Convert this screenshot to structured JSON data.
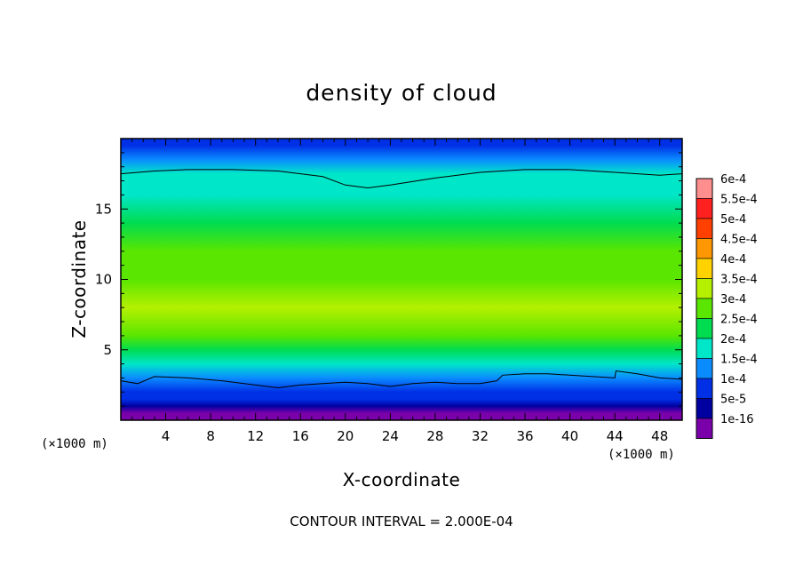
{
  "chart_data": {
    "type": "heatmap",
    "title": "density of cloud",
    "xlabel": "X-coordinate",
    "ylabel": "Z-coordinate",
    "x_unit_label": "(×1000 m)",
    "x_ticks": [
      4,
      8,
      12,
      16,
      20,
      24,
      28,
      32,
      36,
      40,
      44,
      48
    ],
    "y_ticks": [
      5,
      10,
      15
    ],
    "xlim": [
      0,
      50
    ],
    "ylim": [
      0,
      20
    ],
    "footer": "CONTOUR INTERVAL = 2.000E-04",
    "colorbar": {
      "labels": [
        "6e-4",
        "5.5e-4",
        "5e-4",
        "4.5e-4",
        "4e-4",
        "3.5e-4",
        "3e-4",
        "2.5e-4",
        "2e-4",
        "1.5e-4",
        "1e-4",
        "5e-5",
        "1e-16"
      ],
      "colors": [
        "#ff8e8e",
        "#ff2020",
        "#ff4000",
        "#ff9800",
        "#ffd200",
        "#b4f000",
        "#5ae600",
        "#00dc50",
        "#00e6c8",
        "#0a8cff",
        "#0030e6",
        "#0000a0",
        "#7a00aa"
      ]
    },
    "field_profile": {
      "z": [
        0.0,
        0.5,
        1.0,
        1.5,
        2.0,
        3.0,
        4.0,
        5.0,
        6.0,
        8.0,
        10.0,
        12.0,
        14.0,
        16.0,
        17.5,
        18.5,
        19.5,
        20.0
      ],
      "density": [
        0.0,
        3e-05,
        6e-05,
        0.0001,
        0.00014,
        0.00018,
        0.00022,
        0.00026,
        0.0003,
        0.00036,
        0.00034,
        0.0003,
        0.00027,
        0.00024,
        0.0002,
        0.00017,
        0.00014,
        0.00012
      ]
    },
    "contour_lines": [
      {
        "level": 0.0002,
        "x": [
          0,
          3,
          6,
          10,
          14,
          18,
          20,
          22,
          24,
          28,
          32,
          36,
          40,
          44,
          48,
          50
        ],
        "z": [
          17.5,
          17.7,
          17.8,
          17.8,
          17.7,
          17.3,
          16.7,
          16.5,
          16.7,
          17.2,
          17.6,
          17.8,
          17.8,
          17.6,
          17.4,
          17.5
        ]
      },
      {
        "level": 0.0002,
        "x": [
          0,
          1.5,
          3,
          6,
          9,
          12,
          14,
          16,
          18,
          20,
          22,
          24,
          26,
          28,
          30,
          32,
          33.5,
          34,
          36,
          38,
          40,
          42,
          44,
          44.1,
          46,
          48,
          50
        ],
        "z": [
          2.8,
          2.6,
          3.1,
          3.0,
          2.8,
          2.5,
          2.3,
          2.5,
          2.6,
          2.7,
          2.6,
          2.4,
          2.6,
          2.7,
          2.6,
          2.6,
          2.8,
          3.2,
          3.3,
          3.3,
          3.2,
          3.1,
          3.0,
          3.5,
          3.3,
          3.0,
          2.9
        ]
      }
    ]
  }
}
